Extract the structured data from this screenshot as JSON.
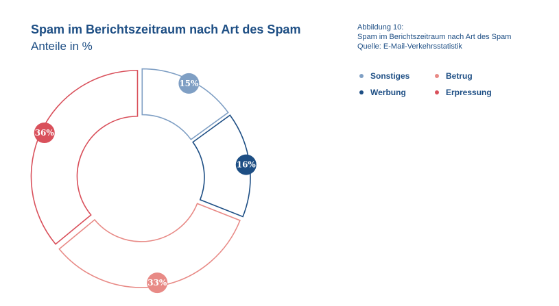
{
  "header": {
    "title": "Spam im Berichtszeitraum nach Art des Spam",
    "subtitle": "Anteile in %"
  },
  "caption": {
    "line1": "Abbildung 10:",
    "line2": "Spam im Berichtszeitraum nach Art des Spam",
    "line3": "Quelle: E-Mail-Verkehrsstatistik"
  },
  "legend": {
    "sonstiges": "Sonstiges",
    "betrug": "Betrug",
    "werbung": "Werbung",
    "erpressung": "Erpressung"
  },
  "chart_data": {
    "type": "pie",
    "variant": "exploded-donut",
    "title": "Spam im Berichtszeitraum nach Art des Spam",
    "subtitle": "Anteile in %",
    "unit": "%",
    "categories": [
      "Sonstiges",
      "Werbung",
      "Betrug",
      "Erpressung"
    ],
    "values": [
      15,
      16,
      33,
      36
    ],
    "labels": [
      "15%",
      "16%",
      "33%",
      "36%"
    ],
    "colors": [
      "#7f9fc4",
      "#1d4e84",
      "#e88a86",
      "#d9505b"
    ],
    "legend_position": "top-right"
  }
}
